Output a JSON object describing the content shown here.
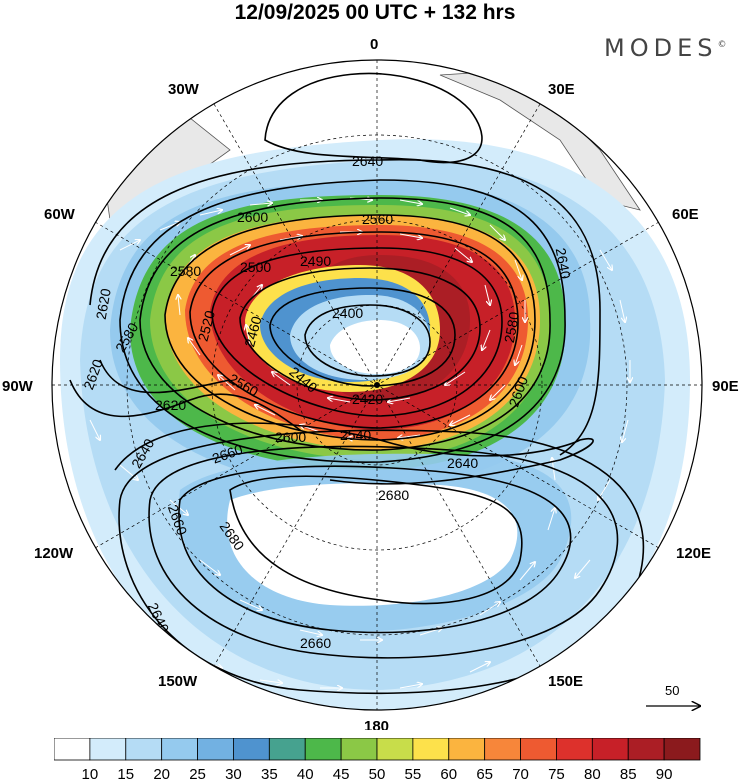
{
  "header": {
    "title": "12/09/2025  00 UTC  + 132 hrs",
    "logo_text": "MODES",
    "logo_mark": "©"
  },
  "map": {
    "projection": "south-polar-stereographic",
    "longitude_labels": [
      "0",
      "30E",
      "60E",
      "90E",
      "120E",
      "150E",
      "180",
      "150W",
      "120W",
      "90W",
      "60W",
      "30W"
    ],
    "contour_labels": [
      "2640",
      "2600",
      "2580",
      "2560",
      "2500",
      "2490",
      "2400",
      "2460",
      "2520",
      "2580",
      "2440",
      "2420",
      "2560",
      "2540",
      "2620",
      "2640",
      "2620",
      "2620",
      "2600",
      "2580",
      "2600",
      "2640",
      "2660",
      "2680",
      "2660",
      "2680",
      "2640",
      "2660",
      "2640"
    ],
    "land_color": "#e8e8e8",
    "contour_color": "#000000",
    "wind_vector_color": "#ffffff"
  },
  "reference_vector": {
    "label": "50"
  },
  "colorbar": {
    "ticks": [
      "10",
      "15",
      "20",
      "25",
      "30",
      "35",
      "40",
      "45",
      "50",
      "55",
      "60",
      "65",
      "70",
      "75",
      "80",
      "85",
      "90"
    ],
    "colors": [
      "#ffffff",
      "#d3ecfb",
      "#b5dcf5",
      "#95caee",
      "#72b1e2",
      "#4f93cf",
      "#46a28f",
      "#4db84a",
      "#8bc846",
      "#c8dd4a",
      "#fde14b",
      "#fbb43f",
      "#f7863a",
      "#ee5a31",
      "#dd312c",
      "#c72028",
      "#ab1e25",
      "#8b1a1d"
    ]
  }
}
